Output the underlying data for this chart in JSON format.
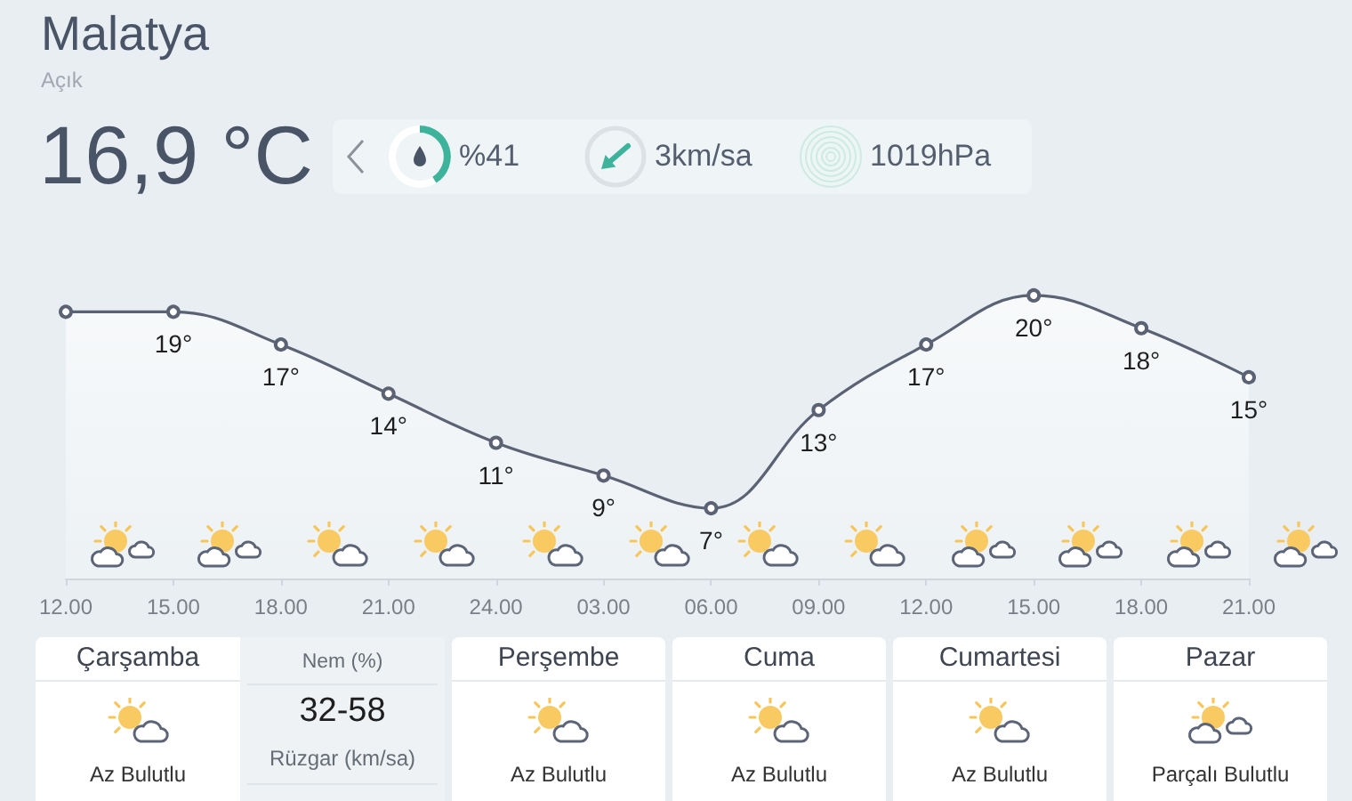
{
  "chart_data": [
    {
      "type": "area",
      "title": "Malatya",
      "subtitle": "Açık",
      "annotations": [
        "16,9 °C",
        "%41",
        "3km/sa",
        "1019hPa"
      ],
      "categories": [
        "12.00",
        "15.00",
        "18.00",
        "21.00",
        "24.00",
        "03.00",
        "06.00",
        "09.00",
        "12.00",
        "15.00",
        "18.00",
        "21.00"
      ],
      "values": [
        19,
        19,
        17,
        14,
        11,
        9,
        7,
        13,
        17,
        20,
        18,
        15
      ],
      "value_labels": [
        null,
        "19°",
        "17°",
        "14°",
        "11°",
        "9°",
        "7°",
        "13°",
        "17°",
        "20°",
        "18°",
        "15°"
      ],
      "color": "#5a6274",
      "marker": "circle",
      "tick_labels": "x"
    },
    {
      "type": "other",
      "annotations": [
        "Çarşamba",
        "Az Bulutlu",
        "Nem (%)",
        "32-58",
        "Rüzgar (km/sa)",
        "Perşembe",
        "Az Bulutlu",
        "Cuma",
        "Az Bulutlu",
        "Cumartesi",
        "Az Bulutlu",
        "Pazar",
        "Parçalı Bulutlu"
      ]
    }
  ]
}
